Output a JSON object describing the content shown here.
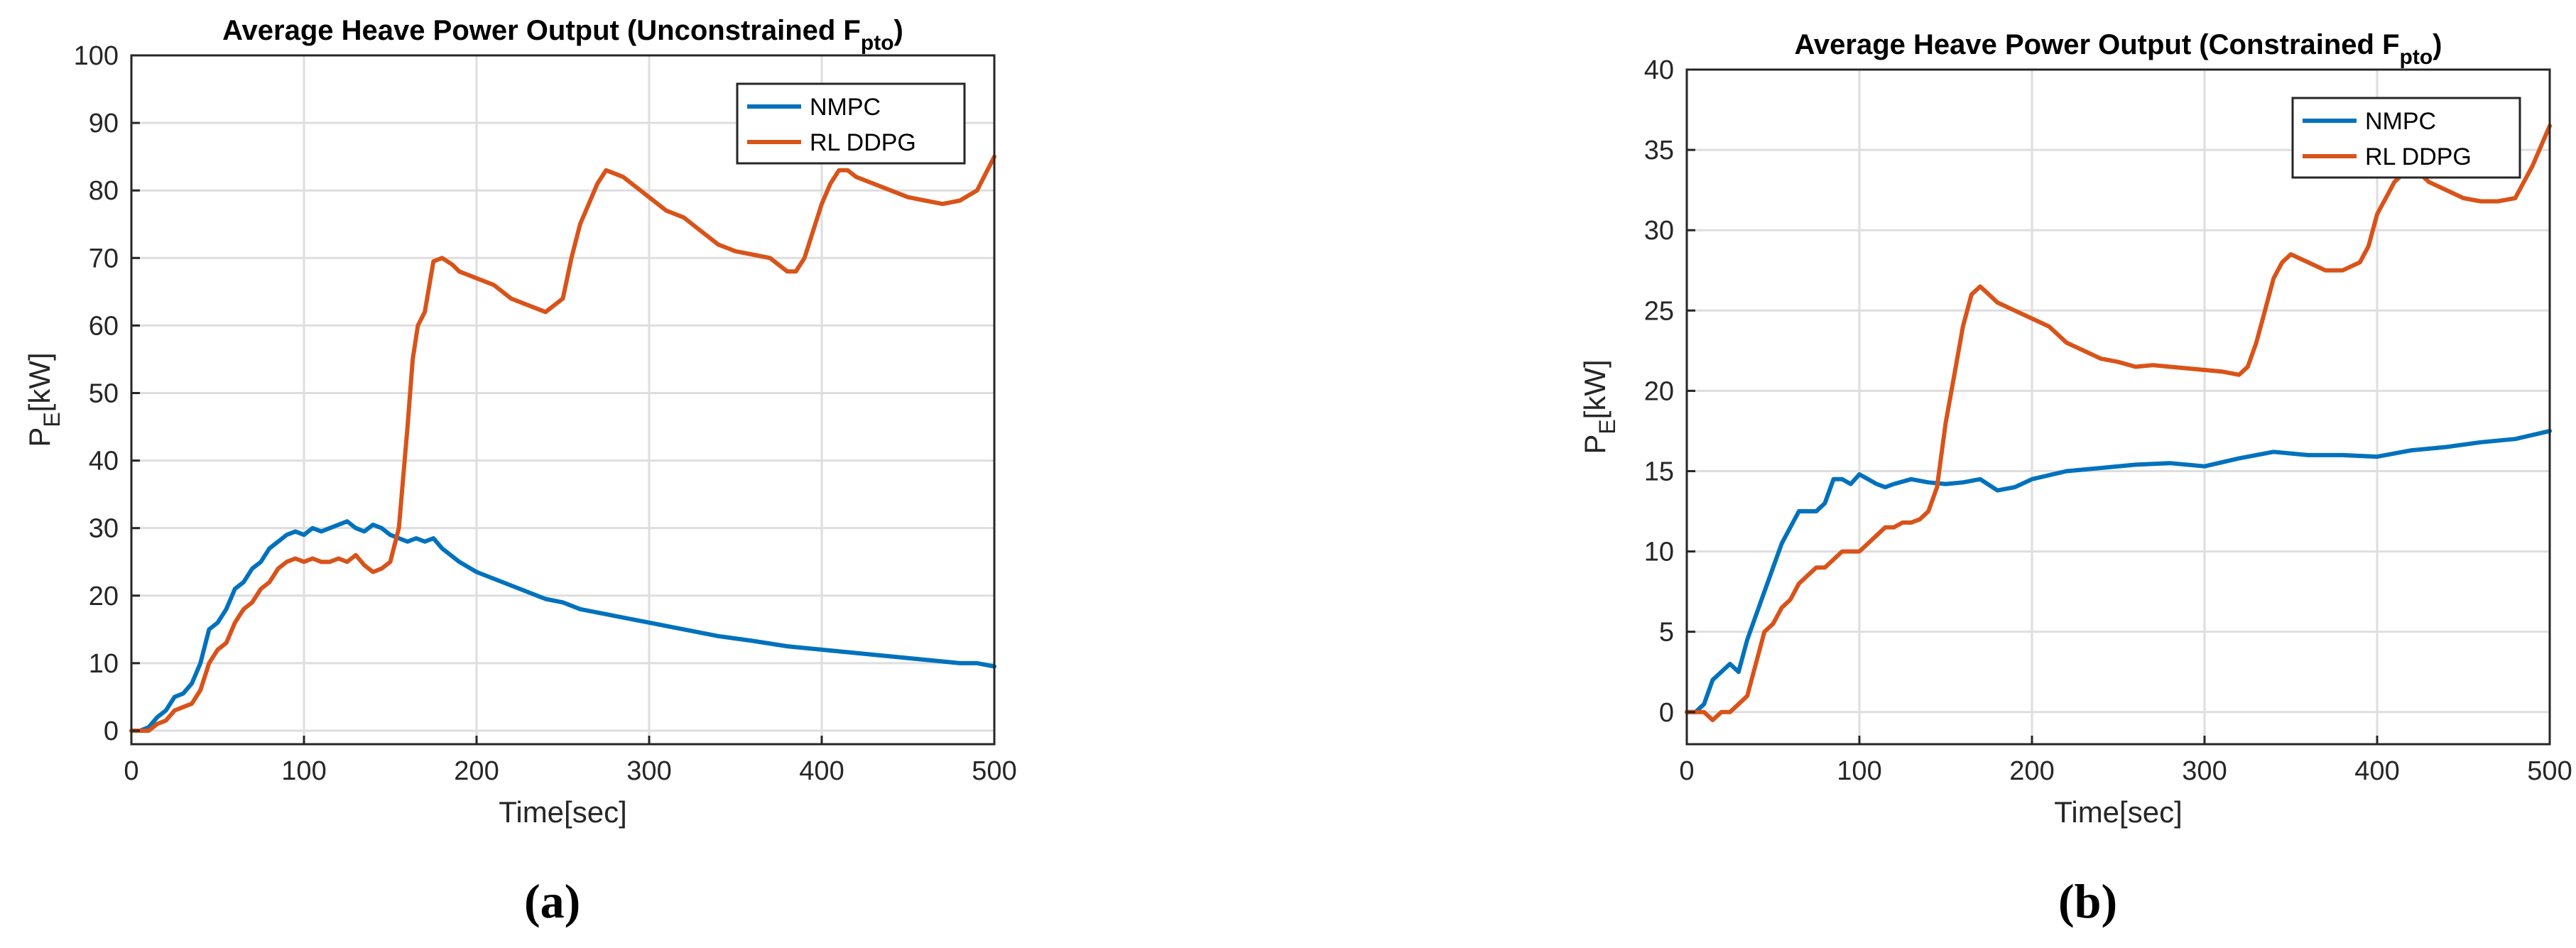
{
  "colors": {
    "nmpc": "#0072BD",
    "rl": "#D95319",
    "grid": "#dedede",
    "axis": "#262626"
  },
  "figure": {
    "captions": [
      "(a)",
      "(b)"
    ]
  },
  "chart_data": [
    {
      "type": "line",
      "title_main": "Average Heave Power Output (Unconstrained F",
      "title_sub": "pto",
      "title_close": ")",
      "xlabel": "Time[sec]",
      "ylabel_main": "P",
      "ylabel_sub": "E",
      "ylabel_unit": "[kW]",
      "xlim": [
        0,
        500
      ],
      "ylim": [
        -2,
        100
      ],
      "xticks": [
        0,
        100,
        200,
        300,
        400,
        500
      ],
      "yticks": [
        0,
        10,
        20,
        30,
        40,
        50,
        60,
        70,
        80,
        90,
        100
      ],
      "grid": true,
      "legend_position": "top-right",
      "series": [
        {
          "name": "NMPC",
          "color": "#0072BD",
          "x": [
            0,
            5,
            10,
            15,
            20,
            25,
            30,
            35,
            40,
            45,
            50,
            55,
            60,
            65,
            70,
            75,
            80,
            85,
            90,
            95,
            100,
            105,
            110,
            115,
            120,
            125,
            130,
            135,
            140,
            145,
            150,
            155,
            160,
            165,
            170,
            175,
            180,
            190,
            200,
            210,
            220,
            230,
            240,
            250,
            260,
            270,
            280,
            290,
            300,
            320,
            340,
            360,
            380,
            400,
            420,
            440,
            460,
            480,
            490,
            500
          ],
          "y": [
            0,
            0,
            0.5,
            2,
            3,
            5,
            5.5,
            7,
            10,
            15,
            16,
            18,
            21,
            22,
            24,
            25,
            27,
            28,
            29,
            29.5,
            29,
            30,
            29.5,
            30,
            30.5,
            31,
            30,
            29.5,
            30.5,
            30,
            29,
            28.5,
            28,
            28.5,
            28,
            28.5,
            27,
            25,
            23.5,
            22.5,
            21.5,
            20.5,
            19.5,
            19,
            18,
            17.5,
            17,
            16.5,
            16,
            15,
            14,
            13.3,
            12.5,
            12,
            11.5,
            11,
            10.5,
            10,
            10,
            9.5
          ]
        },
        {
          "name": "RL DDPG",
          "color": "#D95319",
          "x": [
            0,
            10,
            15,
            20,
            25,
            30,
            35,
            40,
            45,
            50,
            55,
            60,
            65,
            70,
            75,
            80,
            85,
            90,
            95,
            100,
            105,
            110,
            115,
            120,
            125,
            130,
            135,
            140,
            145,
            150,
            155,
            160,
            163,
            166,
            170,
            175,
            180,
            183,
            186,
            190,
            200,
            210,
            220,
            230,
            240,
            250,
            255,
            260,
            265,
            270,
            275,
            280,
            285,
            290,
            300,
            310,
            320,
            330,
            340,
            350,
            360,
            370,
            380,
            385,
            390,
            395,
            400,
            405,
            410,
            415,
            420,
            430,
            440,
            450,
            460,
            470,
            480,
            490,
            500
          ],
          "y": [
            0,
            0,
            1,
            1.5,
            3,
            3.5,
            4,
            6,
            10,
            12,
            13,
            16,
            18,
            19,
            21,
            22,
            24,
            25,
            25.5,
            25,
            25.5,
            25,
            25,
            25.5,
            25,
            26,
            24.5,
            23.5,
            24,
            25,
            30,
            45,
            55,
            60,
            62,
            69.5,
            70,
            69.5,
            69,
            68,
            67,
            66,
            64,
            63,
            62,
            64,
            70,
            75,
            78,
            81,
            83,
            82.5,
            82,
            81,
            79,
            77,
            76,
            74,
            72,
            71,
            70.5,
            70,
            68,
            68,
            70,
            74,
            78,
            81,
            83,
            83,
            82,
            81,
            80,
            79,
            78.5,
            78,
            78.5,
            80,
            85
          ]
        }
      ]
    },
    {
      "type": "line",
      "title_main": "Average Heave Power Output (Constrained F",
      "title_sub": "pto",
      "title_close": ")",
      "xlabel": "Time[sec]",
      "ylabel_main": "P",
      "ylabel_sub": "E",
      "ylabel_unit": "[kW]",
      "xlim": [
        0,
        500
      ],
      "ylim": [
        -2,
        40
      ],
      "xticks": [
        0,
        100,
        200,
        300,
        400,
        500
      ],
      "yticks": [
        0,
        5,
        10,
        15,
        20,
        25,
        30,
        35,
        40
      ],
      "grid": true,
      "legend_position": "top-right",
      "series": [
        {
          "name": "NMPC",
          "color": "#0072BD",
          "x": [
            0,
            5,
            10,
            15,
            20,
            25,
            30,
            35,
            40,
            45,
            50,
            55,
            60,
            65,
            70,
            75,
            80,
            85,
            90,
            95,
            100,
            105,
            110,
            115,
            120,
            130,
            140,
            150,
            160,
            170,
            180,
            190,
            200,
            220,
            240,
            260,
            280,
            300,
            320,
            340,
            360,
            380,
            400,
            420,
            440,
            460,
            480,
            500
          ],
          "y": [
            0,
            0,
            0.5,
            2,
            2.5,
            3,
            2.5,
            4.5,
            6,
            7.5,
            9,
            10.5,
            11.5,
            12.5,
            12.5,
            12.5,
            13,
            14.5,
            14.5,
            14.2,
            14.8,
            14.5,
            14.2,
            14,
            14.2,
            14.5,
            14.3,
            14.2,
            14.3,
            14.5,
            13.8,
            14,
            14.5,
            15,
            15.2,
            15.4,
            15.5,
            15.3,
            15.8,
            16.2,
            16,
            16,
            15.9,
            16.3,
            16.5,
            16.8,
            17,
            17.5
          ]
        },
        {
          "name": "RL DDPG",
          "color": "#D95319",
          "x": [
            0,
            10,
            15,
            20,
            25,
            30,
            35,
            40,
            45,
            50,
            55,
            60,
            65,
            70,
            75,
            80,
            85,
            90,
            95,
            100,
            105,
            110,
            115,
            120,
            125,
            130,
            135,
            140,
            145,
            150,
            155,
            160,
            165,
            170,
            175,
            180,
            190,
            200,
            210,
            220,
            230,
            240,
            250,
            260,
            270,
            280,
            290,
            300,
            310,
            320,
            325,
            330,
            335,
            340,
            345,
            350,
            360,
            370,
            380,
            390,
            395,
            400,
            405,
            410,
            415,
            420,
            430,
            440,
            450,
            460,
            470,
            480,
            490,
            500
          ],
          "y": [
            0,
            0,
            -0.5,
            0,
            0,
            0.5,
            1,
            3,
            5,
            5.5,
            6.5,
            7,
            8,
            8.5,
            9,
            9,
            9.5,
            10,
            10,
            10,
            10.5,
            11,
            11.5,
            11.5,
            11.8,
            11.8,
            12,
            12.5,
            14,
            18,
            21,
            24,
            26,
            26.5,
            26,
            25.5,
            25,
            24.5,
            24,
            23,
            22.5,
            22,
            21.8,
            21.5,
            21.6,
            21.5,
            21.4,
            21.3,
            21.2,
            21,
            21.5,
            23,
            25,
            27,
            28,
            28.5,
            28,
            27.5,
            27.5,
            28,
            29,
            31,
            32,
            33,
            33.5,
            34,
            33,
            32.5,
            32,
            31.8,
            31.8,
            32,
            34,
            36.5
          ]
        }
      ]
    }
  ]
}
